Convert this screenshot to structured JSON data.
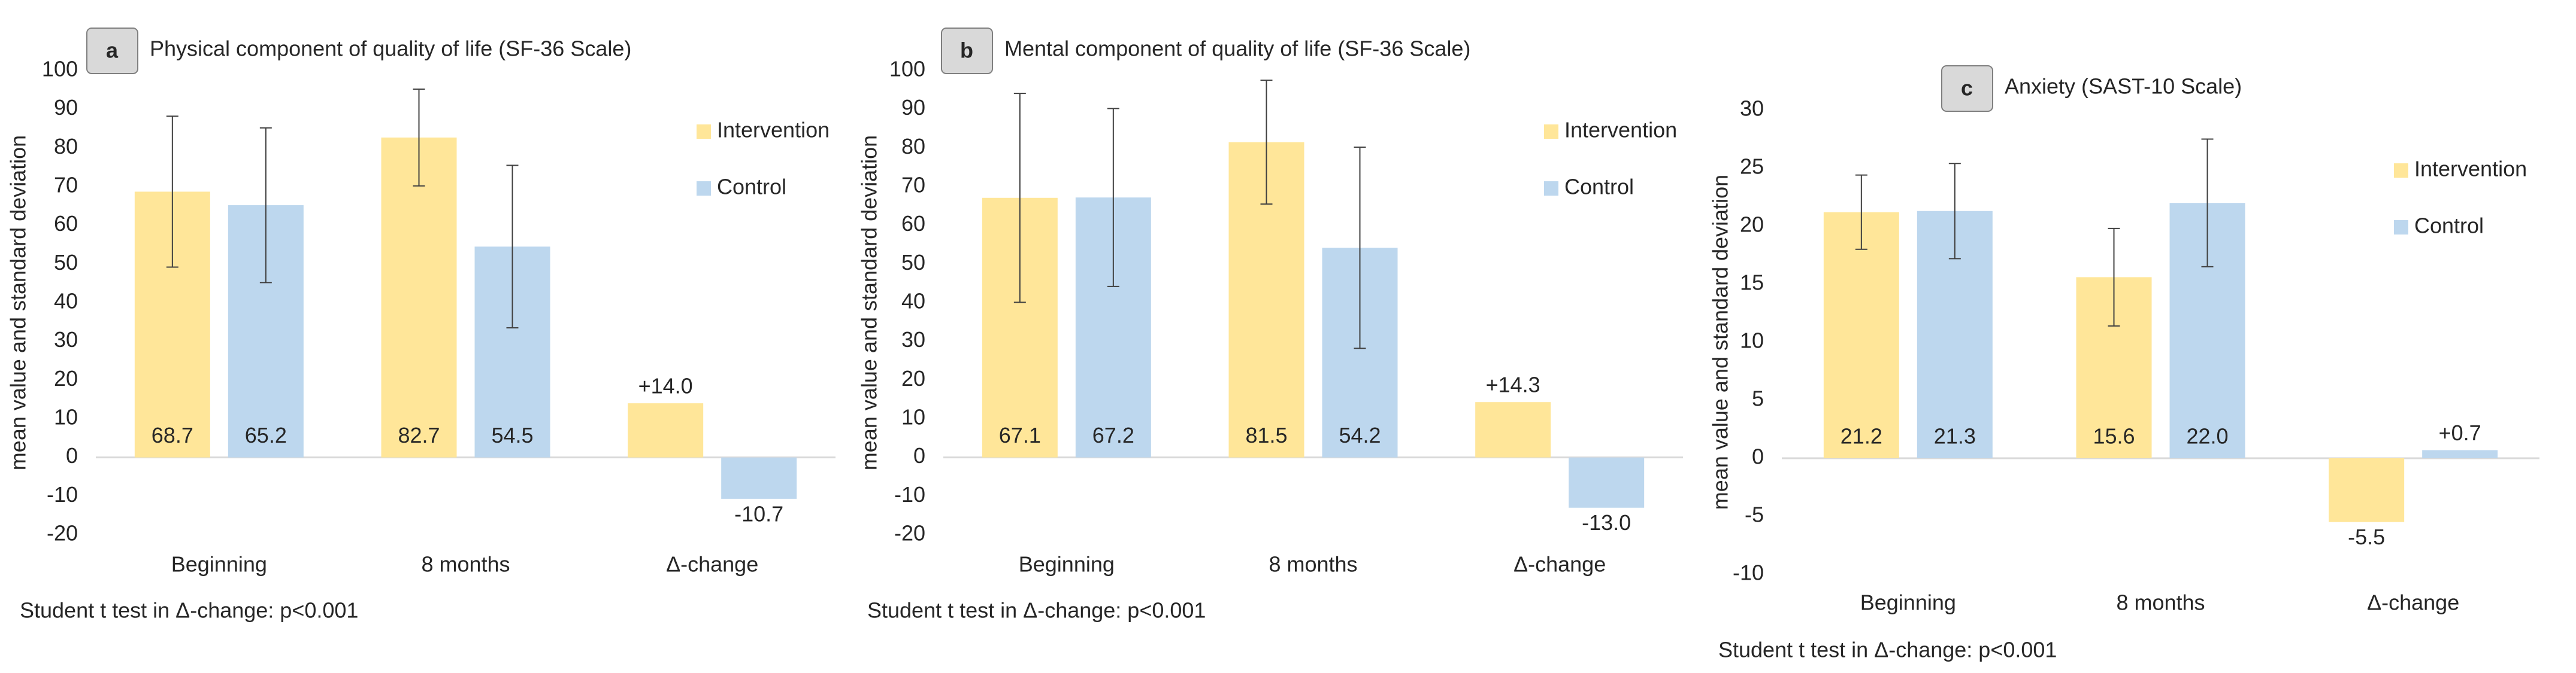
{
  "chart_data": [
    {
      "type": "bar",
      "label": "a",
      "title": "Physical component of quality of life (SF-36 Scale)",
      "y_label": "mean value and standard deviation",
      "categories": [
        "Beginning",
        "8 months",
        "Δ-change"
      ],
      "series": [
        {
          "name": "Intervention",
          "color": "#ffe699",
          "values": [
            68.7,
            82.7,
            14.0
          ],
          "value_labels": [
            "68.7",
            "82.7",
            "+14.0"
          ],
          "errors": [
            19.5,
            12.5,
            null
          ]
        },
        {
          "name": "Control",
          "color": "#bdd7ee",
          "values": [
            65.2,
            54.5,
            -10.7
          ],
          "value_labels": [
            "65.2",
            "54.5",
            "-10.7"
          ],
          "errors": [
            20,
            21,
            null
          ]
        }
      ],
      "ylim": [
        -20,
        100
      ],
      "yticks": [
        -20,
        -10,
        0,
        10,
        20,
        30,
        40,
        50,
        60,
        70,
        80,
        90,
        100
      ],
      "legend": "right",
      "note": "Student t test in Δ-change: p<0.001"
    },
    {
      "type": "bar",
      "label": "b",
      "title": "Mental component of quality of life (SF-36 Scale)",
      "y_label": "mean value and standard deviation",
      "categories": [
        "Beginning",
        "8 months",
        "Δ-change"
      ],
      "series": [
        {
          "name": "Intervention",
          "color": "#ffe699",
          "values": [
            67.1,
            81.5,
            14.3
          ],
          "value_labels": [
            "67.1",
            "81.5",
            "+14.3"
          ],
          "errors": [
            27,
            16,
            null
          ]
        },
        {
          "name": "Control",
          "color": "#bdd7ee",
          "values": [
            67.2,
            54.2,
            -13.0
          ],
          "value_labels": [
            "67.2",
            "54.2",
            "-13.0"
          ],
          "errors": [
            23,
            26,
            null
          ]
        }
      ],
      "ylim": [
        -20,
        100
      ],
      "yticks": [
        -20,
        -10,
        0,
        10,
        20,
        30,
        40,
        50,
        60,
        70,
        80,
        90,
        100
      ],
      "legend": "right",
      "note": "Student t test in Δ-change: p<0.001"
    },
    {
      "type": "bar",
      "label": "c",
      "title": "Anxiety (SAST-10 Scale)",
      "y_label": "mean value and standard deviation",
      "categories": [
        "Beginning",
        "8 months",
        "Δ-change"
      ],
      "series": [
        {
          "name": "Intervention",
          "color": "#ffe699",
          "values": [
            21.2,
            15.6,
            -5.5
          ],
          "value_labels": [
            "21.2",
            "15.6",
            "-5.5"
          ],
          "errors": [
            3.2,
            4.2,
            null
          ]
        },
        {
          "name": "Control",
          "color": "#bdd7ee",
          "values": [
            21.3,
            22.0,
            0.7
          ],
          "value_labels": [
            "21.3",
            "22.0",
            "+0.7"
          ],
          "errors": [
            4.1,
            5.5,
            null
          ]
        }
      ],
      "ylim": [
        -10,
        30
      ],
      "yticks": [
        -10,
        -5,
        0,
        5,
        10,
        15,
        20,
        25,
        30
      ],
      "legend": "right",
      "note": "Student t test in Δ-change: p<0.001"
    }
  ]
}
